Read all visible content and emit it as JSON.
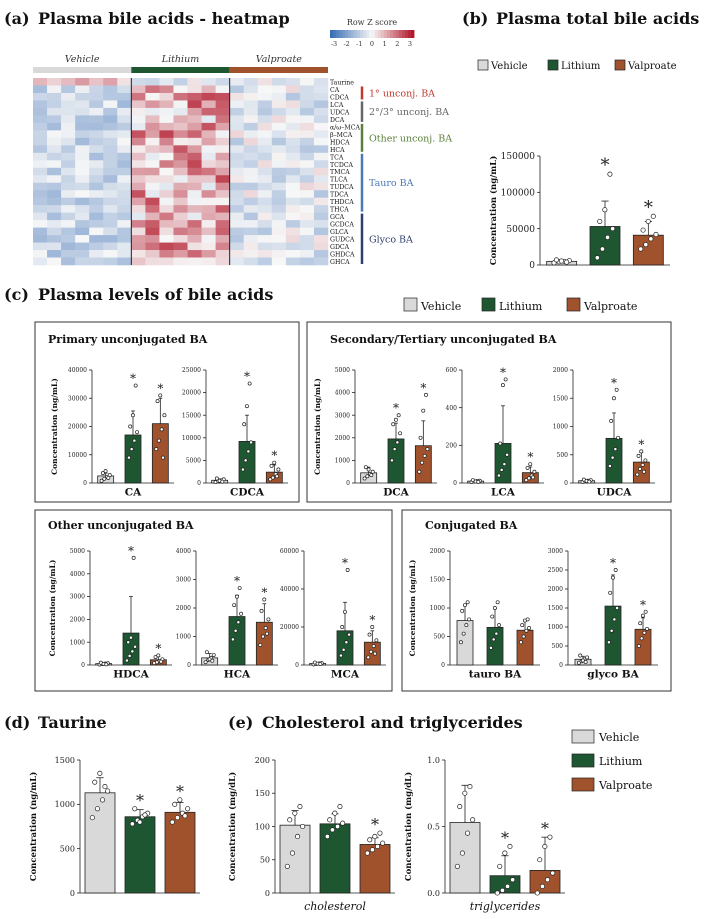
{
  "colors": {
    "vehicle": "#d9d9d9",
    "lithium": "#1e5631",
    "valproate": "#a0522d",
    "heat_low": "#3b6fb6",
    "heat_mid": "#f7f7f7",
    "heat_high": "#b2182b",
    "label_primary": "#c0392b",
    "label_secondary": "#666666",
    "label_other": "#5b7f3a",
    "label_tauro": "#4a7ab7",
    "label_glyco": "#2d3f6b"
  },
  "panel_a": {
    "label": "(a)",
    "title": "Plasma bile acids - heatmap",
    "scale_title": "Row Z score",
    "scale_ticks": [
      "-3",
      "-2",
      "-1",
      "0",
      "1",
      "2",
      "3"
    ],
    "groups": [
      "Vehicle",
      "Lithium",
      "Valproate"
    ],
    "rows": [
      "Taurine",
      "CA",
      "CDCA",
      "LCA",
      "UDCA",
      "DCA",
      "α/ω–MCA",
      "β–MCA",
      "HDCA",
      "HCA",
      "TCA",
      "TCDCA",
      "TMCA",
      "TLCA",
      "TUDCA",
      "TDCA",
      "THDCA",
      "THCA",
      "GCA",
      "GCDCA",
      "GLCA",
      "GUDCA",
      "GDCA",
      "GHDCA",
      "GHCA"
    ],
    "row_groups": [
      {
        "label": "1° unconj. BA",
        "from": 1,
        "to": 2,
        "color": "label_primary"
      },
      {
        "label": "2°/3° unconj. BA",
        "from": 3,
        "to": 5,
        "color": "label_secondary"
      },
      {
        "label": "Other unconj. BA",
        "from": 6,
        "to": 9,
        "color": "label_other"
      },
      {
        "label": "Tauro BA",
        "from": 10,
        "to": 17,
        "color": "label_tauro"
      },
      {
        "label": "Glyco BA",
        "from": 18,
        "to": 24,
        "color": "label_glyco"
      }
    ]
  },
  "panel_b": {
    "label": "(b)",
    "title": "Plasma total bile acids"
  },
  "panel_c": {
    "label": "(c)",
    "title": "Plasma levels of bile acids",
    "boxes": [
      {
        "title": "Primary unconjugated BA"
      },
      {
        "title": "Secondary/Tertiary unconjugated BA"
      },
      {
        "title": "Other unconjugated BA"
      },
      {
        "title": "Conjugated BA"
      }
    ]
  },
  "panel_d": {
    "label": "(d)",
    "title": "Taurine"
  },
  "panel_e": {
    "label": "(e)",
    "title": "Cholesterol and triglycerides"
  },
  "legend": [
    "Vehicle",
    "Lithium",
    "Valproate"
  ],
  "chart_data": [
    {
      "id": "total",
      "type": "bar",
      "title": "Plasma total bile acids",
      "ylabel": "Concentration (ng/mL)",
      "categories": [
        "Vehicle",
        "Lithium",
        "Valproate"
      ],
      "ylim": [
        0,
        150000
      ],
      "ticks": [
        0,
        50000,
        100000,
        150000
      ],
      "tick_labels": [
        "0",
        "50000",
        "100000",
        "150000"
      ],
      "values": [
        5000,
        53000,
        41000
      ],
      "errors": [
        2000,
        35000,
        19000
      ],
      "significant": [
        false,
        true,
        true
      ],
      "points": [
        [
          3000,
          4500,
          5000,
          6000,
          7000,
          5500,
          4000
        ],
        [
          10000,
          22000,
          38000,
          50000,
          60000,
          76000,
          125000
        ],
        [
          22000,
          28000,
          36000,
          42000,
          48000,
          60000,
          67000
        ]
      ]
    },
    {
      "id": "CA",
      "type": "bar",
      "xlabel": "CA",
      "ylabel": "Concentration (ng/mL)",
      "categories": [
        "Vehicle",
        "Lithium",
        "Valproate"
      ],
      "ylim": [
        0,
        40000
      ],
      "ticks": [
        0,
        10000,
        20000,
        30000,
        40000
      ],
      "tick_labels": [
        "0",
        "10000",
        "20000",
        "30000",
        "40000"
      ],
      "values": [
        2500,
        17000,
        21000
      ],
      "errors": [
        1000,
        8500,
        9000
      ],
      "significant": [
        false,
        true,
        true
      ],
      "points": [
        [
          800,
          1500,
          2200,
          2800,
          3500,
          4200,
          1800
        ],
        [
          9000,
          12000,
          15000,
          18000,
          20000,
          24000,
          34500
        ],
        [
          12000,
          15000,
          19000,
          24000,
          29000,
          31000,
          9000
        ]
      ]
    },
    {
      "id": "CDCA",
      "type": "bar",
      "xlabel": "CDCA",
      "ylabel": "",
      "categories": [
        "Vehicle",
        "Lithium",
        "Valproate"
      ],
      "ylim": [
        0,
        25000
      ],
      "ticks": [
        0,
        5000,
        10000,
        15000,
        20000,
        25000
      ],
      "tick_labels": [
        "0",
        "5000",
        "10000",
        "15000",
        "20000",
        "25000"
      ],
      "values": [
        600,
        9200,
        2400
      ],
      "errors": [
        300,
        5800,
        1600
      ],
      "significant": [
        false,
        true,
        true
      ],
      "points": [
        [
          200,
          400,
          600,
          800,
          1000,
          500,
          300
        ],
        [
          3000,
          5000,
          7000,
          9000,
          13000,
          17000,
          22000
        ],
        [
          800,
          1200,
          2000,
          3000,
          3800,
          4500,
          1500
        ]
      ]
    },
    {
      "id": "DCA",
      "type": "bar",
      "xlabel": "DCA",
      "ylabel": "Concentration (ng/mL)",
      "categories": [
        "Vehicle",
        "Lithium",
        "Valproate"
      ],
      "ylim": [
        0,
        5000
      ],
      "ticks": [
        0,
        1000,
        2000,
        3000,
        4000,
        5000
      ],
      "tick_labels": [
        "0",
        "1000",
        "2000",
        "3000",
        "4000",
        "5000"
      ],
      "values": [
        450,
        1950,
        1650
      ],
      "errors": [
        250,
        700,
        1100
      ],
      "significant": [
        false,
        true,
        true
      ],
      "points": [
        [
          200,
          300,
          400,
          500,
          700,
          600,
          350
        ],
        [
          1000,
          1500,
          1800,
          2200,
          2600,
          2800,
          3000
        ],
        [
          500,
          900,
          1200,
          1500,
          2000,
          3200,
          3900
        ]
      ]
    },
    {
      "id": "LCA",
      "type": "bar",
      "xlabel": "LCA",
      "ylabel": "",
      "categories": [
        "Vehicle",
        "Lithium",
        "Valproate"
      ],
      "ylim": [
        0,
        600
      ],
      "ticks": [
        0,
        200,
        400,
        600
      ],
      "tick_labels": [
        "0",
        "200",
        "400",
        "600"
      ],
      "values": [
        10,
        210,
        55
      ],
      "errors": [
        5,
        200,
        30
      ],
      "significant": [
        false,
        true,
        true
      ],
      "points": [
        [
          5,
          8,
          10,
          12,
          15,
          8,
          6
        ],
        [
          40,
          70,
          100,
          150,
          210,
          520,
          550
        ],
        [
          15,
          25,
          40,
          60,
          80,
          100,
          30
        ]
      ]
    },
    {
      "id": "UDCA",
      "type": "bar",
      "xlabel": "UDCA",
      "ylabel": "",
      "categories": [
        "Vehicle",
        "Lithium",
        "Valproate"
      ],
      "ylim": [
        0,
        2000
      ],
      "ticks": [
        0,
        500,
        1000,
        1500,
        2000
      ],
      "tick_labels": [
        "0",
        "500",
        "1000",
        "1500",
        "2000"
      ],
      "values": [
        40,
        790,
        370
      ],
      "errors": [
        20,
        450,
        170
      ],
      "significant": [
        false,
        true,
        true
      ],
      "points": [
        [
          20,
          30,
          40,
          50,
          60,
          35,
          25
        ],
        [
          300,
          450,
          600,
          800,
          1100,
          1500,
          1650
        ],
        [
          150,
          250,
          320,
          400,
          480,
          560,
          200
        ]
      ]
    },
    {
      "id": "HDCA",
      "type": "bar",
      "xlabel": "HDCA",
      "ylabel": "Concentration (ng/mL)",
      "categories": [
        "Vehicle",
        "Lithium",
        "Valproate"
      ],
      "ylim": [
        0,
        5000
      ],
      "ticks": [
        0,
        1000,
        2000,
        3000,
        4000,
        5000
      ],
      "tick_labels": [
        "0",
        "1000",
        "2000",
        "3000",
        "4000",
        "5000"
      ],
      "values": [
        60,
        1400,
        230
      ],
      "errors": [
        30,
        1600,
        150
      ],
      "significant": [
        false,
        true,
        true
      ],
      "points": [
        [
          20,
          40,
          60,
          80,
          100,
          50,
          30
        ],
        [
          200,
          400,
          600,
          800,
          1000,
          1200,
          4700
        ],
        [
          80,
          120,
          180,
          250,
          350,
          420,
          150
        ]
      ]
    },
    {
      "id": "HCA",
      "type": "bar",
      "xlabel": "HCA",
      "ylabel": "",
      "categories": [
        "Vehicle",
        "Lithium",
        "Valproate"
      ],
      "ylim": [
        0,
        4000
      ],
      "ticks": [
        0,
        1000,
        2000,
        3000,
        4000
      ],
      "tick_labels": [
        "0",
        "1000",
        "2000",
        "3000",
        "4000"
      ],
      "values": [
        250,
        1700,
        1500
      ],
      "errors": [
        150,
        750,
        650
      ],
      "significant": [
        false,
        true,
        true
      ],
      "points": [
        [
          100,
          180,
          250,
          350,
          450,
          200,
          150
        ],
        [
          900,
          1200,
          1500,
          1800,
          2100,
          2400,
          2700
        ],
        [
          700,
          1000,
          1300,
          1600,
          1900,
          2300,
          1100
        ]
      ]
    },
    {
      "id": "MCA",
      "type": "bar",
      "xlabel": "MCA",
      "ylabel": "",
      "categories": [
        "Vehicle",
        "Lithium",
        "Valproate"
      ],
      "ylim": [
        0,
        60000
      ],
      "ticks": [
        0,
        20000,
        40000,
        60000
      ],
      "tick_labels": [
        "0",
        "20000",
        "40000",
        "60000"
      ],
      "values": [
        800,
        18000,
        12000
      ],
      "errors": [
        400,
        15000,
        6000
      ],
      "significant": [
        false,
        true,
        true
      ],
      "points": [
        [
          300,
          500,
          800,
          1000,
          1300,
          700,
          500
        ],
        [
          5000,
          8000,
          12000,
          16000,
          20000,
          28000,
          50000
        ],
        [
          4000,
          7000,
          10000,
          13000,
          16000,
          20000,
          6000
        ]
      ]
    },
    {
      "id": "tauro",
      "type": "bar",
      "xlabel": "tauro BA",
      "ylabel": "Concentration (ng/mL)",
      "categories": [
        "Vehicle",
        "Lithium",
        "Valproate"
      ],
      "ylim": [
        0,
        2000
      ],
      "ticks": [
        0,
        500,
        1000,
        1500,
        2000
      ],
      "tick_labels": [
        "0",
        "500",
        "1000",
        "1500",
        "2000"
      ],
      "values": [
        780,
        660,
        610
      ],
      "errors": [
        280,
        330,
        180
      ],
      "significant": [
        false,
        false,
        false
      ],
      "points": [
        [
          400,
          550,
          700,
          800,
          950,
          1050,
          1100
        ],
        [
          300,
          450,
          550,
          700,
          850,
          1000,
          1100
        ],
        [
          400,
          500,
          600,
          650,
          700,
          780,
          800
        ]
      ]
    },
    {
      "id": "glyco",
      "type": "bar",
      "xlabel": "glyco BA",
      "ylabel": "",
      "categories": [
        "Vehicle",
        "Lithium",
        "Valproate"
      ],
      "ylim": [
        0,
        3000
      ],
      "ticks": [
        0,
        500,
        1000,
        1500,
        2000,
        2500,
        3000
      ],
      "tick_labels": [
        "0",
        "500",
        "1000",
        "1500",
        "2000",
        "2500",
        "3000"
      ],
      "values": [
        150,
        1550,
        940
      ],
      "errors": [
        80,
        820,
        300
      ],
      "significant": [
        false,
        true,
        true
      ],
      "points": [
        [
          60,
          100,
          150,
          200,
          250,
          120,
          80
        ],
        [
          600,
          900,
          1200,
          1500,
          1900,
          2300,
          2500
        ],
        [
          500,
          700,
          850,
          950,
          1100,
          1300,
          1400
        ]
      ]
    },
    {
      "id": "taurine",
      "type": "bar",
      "ylabel": "Concentration (ng/mL)",
      "categories": [
        "Vehicle",
        "Lithium",
        "Valproate"
      ],
      "ylim": [
        0,
        1500
      ],
      "ticks": [
        0,
        500,
        1000,
        1500
      ],
      "tick_labels": [
        "0",
        "500",
        "1000",
        "1500"
      ],
      "values": [
        1130,
        860,
        910
      ],
      "errors": [
        170,
        80,
        110
      ],
      "significant": [
        false,
        true,
        true
      ],
      "points": [
        [
          850,
          950,
          1050,
          1150,
          1250,
          1350,
          1200
        ],
        [
          780,
          820,
          860,
          900,
          950,
          800,
          880
        ],
        [
          800,
          850,
          900,
          950,
          1000,
          1050,
          870
        ]
      ]
    },
    {
      "id": "cholesterol",
      "type": "bar",
      "xlabel": "cholesterol",
      "ylabel": "Concentration (mg/dL)",
      "categories": [
        "Vehicle",
        "Lithium",
        "Valproate"
      ],
      "ylim": [
        0,
        200
      ],
      "ticks": [
        0,
        50,
        100,
        150,
        200
      ],
      "tick_labels": [
        "0",
        "50",
        "100",
        "150",
        "200"
      ],
      "values": [
        102,
        104,
        73
      ],
      "errors": [
        22,
        15,
        10
      ],
      "significant": [
        false,
        false,
        true
      ],
      "points": [
        [
          40,
          60,
          85,
          100,
          110,
          120,
          130
        ],
        [
          85,
          95,
          100,
          105,
          110,
          120,
          130
        ],
        [
          60,
          65,
          70,
          75,
          80,
          85,
          90
        ]
      ]
    },
    {
      "id": "triglycerides",
      "type": "bar",
      "xlabel": "triglycerides",
      "ylabel": "Concentration (mg/dL)",
      "categories": [
        "Vehicle",
        "Lithium",
        "Valproate"
      ],
      "ylim": [
        0,
        1.0
      ],
      "ticks": [
        0,
        0.5,
        1.0
      ],
      "tick_labels": [
        "0.0",
        "0.5",
        "1.0"
      ],
      "values": [
        0.53,
        0.13,
        0.17
      ],
      "errors": [
        0.28,
        0.15,
        0.25
      ],
      "significant": [
        false,
        true,
        true
      ],
      "points": [
        [
          0.2,
          0.3,
          0.45,
          0.55,
          0.65,
          0.75,
          0.8
        ],
        [
          0.0,
          0.02,
          0.05,
          0.1,
          0.2,
          0.3,
          0.35
        ],
        [
          0.0,
          0.05,
          0.1,
          0.15,
          0.25,
          0.35,
          0.42
        ]
      ]
    }
  ]
}
